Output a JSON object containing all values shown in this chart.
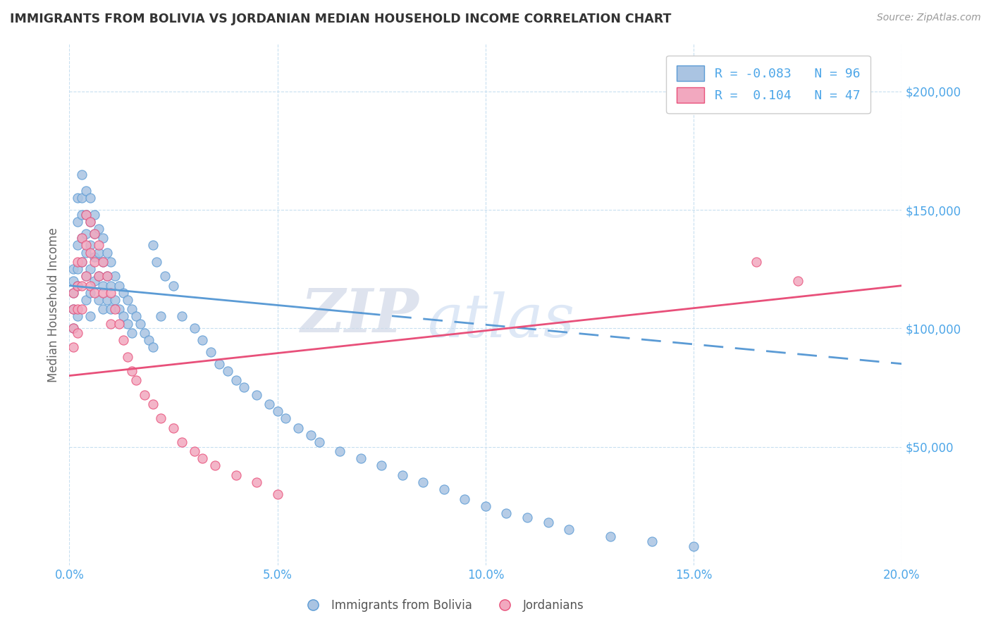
{
  "title": "IMMIGRANTS FROM BOLIVIA VS JORDANIAN MEDIAN HOUSEHOLD INCOME CORRELATION CHART",
  "source": "Source: ZipAtlas.com",
  "ylabel": "Median Household Income",
  "legend_label1": "Immigrants from Bolivia",
  "legend_label2": "Jordanians",
  "r1": -0.083,
  "n1": 96,
  "r2": 0.104,
  "n2": 47,
  "color_blue": "#aac4e2",
  "color_pink": "#f2a8bf",
  "color_line_blue": "#5b9bd5",
  "color_line_pink": "#e8507a",
  "color_axis_labels": "#4da6e8",
  "color_title": "#333333",
  "color_grid": "#c8dff0",
  "watermark_zip": "ZIP",
  "watermark_atlas": "atlas",
  "xlim": [
    0.0,
    0.2
  ],
  "ylim": [
    0,
    220000
  ],
  "yticks": [
    50000,
    100000,
    150000,
    200000
  ],
  "xticks": [
    0.0,
    0.05,
    0.1,
    0.15,
    0.2
  ],
  "xticklabels": [
    "0.0%",
    "5.0%",
    "10.0%",
    "15.0%",
    "20.0%"
  ],
  "yticklabels": [
    "$50,000",
    "$100,000",
    "$150,000",
    "$200,000"
  ],
  "blue_x": [
    0.001,
    0.001,
    0.001,
    0.001,
    0.001,
    0.002,
    0.002,
    0.002,
    0.002,
    0.002,
    0.002,
    0.003,
    0.003,
    0.003,
    0.003,
    0.003,
    0.004,
    0.004,
    0.004,
    0.004,
    0.004,
    0.004,
    0.005,
    0.005,
    0.005,
    0.005,
    0.005,
    0.005,
    0.006,
    0.006,
    0.006,
    0.006,
    0.007,
    0.007,
    0.007,
    0.007,
    0.008,
    0.008,
    0.008,
    0.008,
    0.009,
    0.009,
    0.009,
    0.01,
    0.01,
    0.01,
    0.011,
    0.011,
    0.012,
    0.012,
    0.013,
    0.013,
    0.014,
    0.014,
    0.015,
    0.015,
    0.016,
    0.017,
    0.018,
    0.019,
    0.02,
    0.02,
    0.021,
    0.022,
    0.023,
    0.025,
    0.027,
    0.03,
    0.032,
    0.034,
    0.036,
    0.038,
    0.04,
    0.042,
    0.045,
    0.048,
    0.05,
    0.052,
    0.055,
    0.058,
    0.06,
    0.065,
    0.07,
    0.075,
    0.08,
    0.085,
    0.09,
    0.095,
    0.1,
    0.105,
    0.11,
    0.115,
    0.12,
    0.13,
    0.14,
    0.15
  ],
  "blue_y": [
    115000,
    120000,
    125000,
    108000,
    100000,
    155000,
    145000,
    135000,
    125000,
    118000,
    105000,
    165000,
    155000,
    148000,
    138000,
    128000,
    158000,
    148000,
    140000,
    132000,
    122000,
    112000,
    155000,
    145000,
    135000,
    125000,
    115000,
    105000,
    148000,
    140000,
    130000,
    120000,
    142000,
    132000,
    122000,
    112000,
    138000,
    128000,
    118000,
    108000,
    132000,
    122000,
    112000,
    128000,
    118000,
    108000,
    122000,
    112000,
    118000,
    108000,
    115000,
    105000,
    112000,
    102000,
    108000,
    98000,
    105000,
    102000,
    98000,
    95000,
    135000,
    92000,
    128000,
    105000,
    122000,
    118000,
    105000,
    100000,
    95000,
    90000,
    85000,
    82000,
    78000,
    75000,
    72000,
    68000,
    65000,
    62000,
    58000,
    55000,
    52000,
    48000,
    45000,
    42000,
    38000,
    35000,
    32000,
    28000,
    25000,
    22000,
    20000,
    18000,
    15000,
    12000,
    10000,
    8000
  ],
  "pink_x": [
    0.001,
    0.001,
    0.001,
    0.001,
    0.002,
    0.002,
    0.002,
    0.002,
    0.003,
    0.003,
    0.003,
    0.003,
    0.004,
    0.004,
    0.004,
    0.005,
    0.005,
    0.005,
    0.006,
    0.006,
    0.006,
    0.007,
    0.007,
    0.008,
    0.008,
    0.009,
    0.01,
    0.01,
    0.011,
    0.012,
    0.013,
    0.014,
    0.015,
    0.016,
    0.018,
    0.02,
    0.022,
    0.025,
    0.027,
    0.03,
    0.032,
    0.035,
    0.04,
    0.045,
    0.05,
    0.165,
    0.175
  ],
  "pink_y": [
    115000,
    108000,
    100000,
    92000,
    128000,
    118000,
    108000,
    98000,
    138000,
    128000,
    118000,
    108000,
    148000,
    135000,
    122000,
    145000,
    132000,
    118000,
    140000,
    128000,
    115000,
    135000,
    122000,
    128000,
    115000,
    122000,
    115000,
    102000,
    108000,
    102000,
    95000,
    88000,
    82000,
    78000,
    72000,
    68000,
    62000,
    58000,
    52000,
    48000,
    45000,
    42000,
    38000,
    35000,
    30000,
    128000,
    120000
  ],
  "blue_line_x0": 0.0,
  "blue_line_x_solid_end": 0.07,
  "blue_line_x1": 0.2,
  "blue_line_y0": 118000,
  "blue_line_y1": 85000,
  "pink_line_x0": 0.0,
  "pink_line_x1": 0.2,
  "pink_line_y0": 80000,
  "pink_line_y1": 118000
}
